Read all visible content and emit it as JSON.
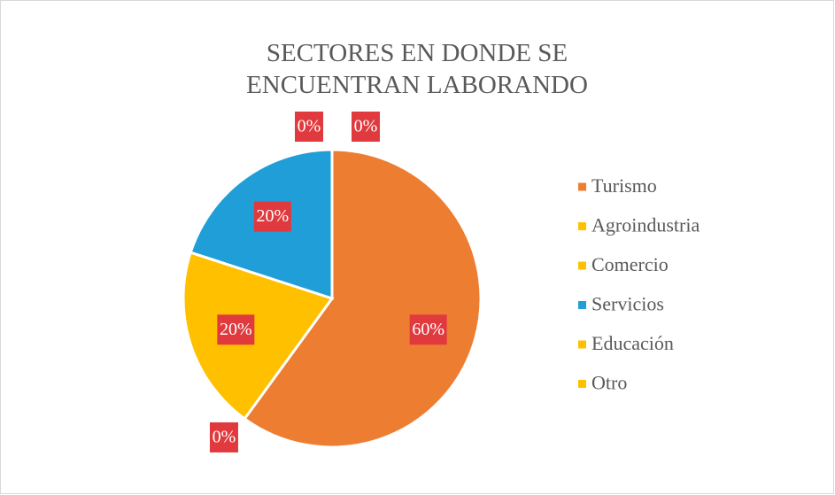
{
  "chart_data": {
    "type": "pie",
    "title": "SECTORES EN DONDE SE ENCUENTRAN LABORANDO",
    "categories": [
      "Turismo",
      "Agroindustria",
      "Comercio",
      "Servicios",
      "Educación",
      "Otro"
    ],
    "values": [
      60,
      0,
      20,
      20,
      0,
      0
    ],
    "value_labels": [
      "60%",
      "0%",
      "20%",
      "20%",
      "0%",
      "0%"
    ],
    "colors": [
      "#ED7D31",
      "#FFC000",
      "#FFC000",
      "#1F9ED8",
      "#FFC000",
      "#FFC000"
    ],
    "legend": "right"
  }
}
